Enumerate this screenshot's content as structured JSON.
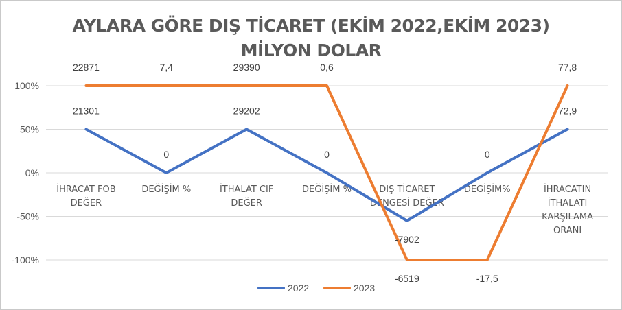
{
  "chart_data": {
    "type": "line",
    "title": "AYLARA GÖRE DIŞ TİCARET (EKİM 2022,EKİM 2023)",
    "subtitle": "MİLYON DOLAR",
    "categories": [
      [
        "İHRACAT FOB",
        "DEĞER"
      ],
      [
        "DEĞİŞİM %"
      ],
      [
        "İTHALAT CIF",
        "DEĞER"
      ],
      [
        "DEĞİŞİM %"
      ],
      [
        "DIŞ TİCARET",
        "DENGESİ DEĞER"
      ],
      [
        "DEĞİŞİM%"
      ],
      [
        "İHRACATIN",
        "İTHALATI",
        "KARŞILAMA",
        "ORANI"
      ]
    ],
    "y_ticks": [
      "100%",
      "50%",
      "0%",
      "-50%",
      "-100%"
    ],
    "ylim": [
      -1,
      1
    ],
    "grid": true,
    "legend_position": "bottom",
    "series": [
      {
        "name": "2022",
        "color": "#4472c4",
        "values": [
          0.5,
          0,
          0.5,
          0,
          -0.55,
          0,
          0.5
        ],
        "labels": [
          "21301",
          "0",
          "29202",
          "0",
          "-7902",
          "0",
          "72,9"
        ]
      },
      {
        "name": "2023",
        "color": "#ed7d31",
        "values": [
          1,
          1,
          1,
          1,
          -1,
          -1,
          1
        ],
        "labels": [
          "22871",
          "7,4",
          "29390",
          "0,6",
          "-6519",
          "-17,5",
          "77,8"
        ]
      }
    ]
  }
}
